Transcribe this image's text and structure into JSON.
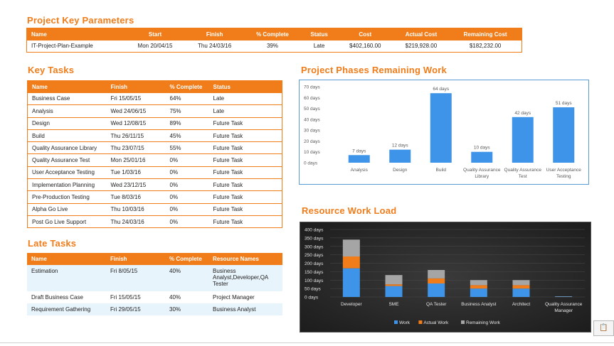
{
  "key_params": {
    "title": "Project Key Parameters",
    "headers": [
      "Name",
      "Start",
      "Finish",
      "% Complete",
      "Status",
      "Cost",
      "Actual Cost",
      "Remaining Cost"
    ],
    "row": [
      "IT-Project-Plan-Example",
      "Mon 20/04/15",
      "Thu 24/03/16",
      "39%",
      "Late",
      "$402,160.00",
      "$219,928.00",
      "$182,232.00"
    ]
  },
  "key_tasks": {
    "title": "Key Tasks",
    "headers": [
      "Name",
      "Finish",
      "% Complete",
      "Status"
    ],
    "rows": [
      [
        "Business Case",
        "Fri 15/05/15",
        "64%",
        "Late"
      ],
      [
        "Analysis",
        "Wed 24/06/15",
        "75%",
        "Late"
      ],
      [
        "Design",
        "Wed 12/08/15",
        "89%",
        "Future Task"
      ],
      [
        "Build",
        "Thu 26/11/15",
        "45%",
        "Future Task"
      ],
      [
        "Quality Assurance Library",
        "Thu 23/07/15",
        "55%",
        "Future Task"
      ],
      [
        "Quality Assurance Test",
        "Mon 25/01/16",
        "0%",
        "Future Task"
      ],
      [
        "User Acceptance Testing",
        "Tue 1/03/16",
        "0%",
        "Future Task"
      ],
      [
        "Implementation Planning",
        "Wed 23/12/15",
        "0%",
        "Future Task"
      ],
      [
        "Pre-Production Testing",
        "Tue 8/03/16",
        "0%",
        "Future Task"
      ],
      [
        "Alpha Go Live",
        "Thu 10/03/16",
        "0%",
        "Future Task"
      ],
      [
        "Post Go Live Support",
        "Thu 24/03/16",
        "0%",
        "Future Task"
      ]
    ]
  },
  "late_tasks": {
    "title": "Late Tasks",
    "headers": [
      "Name",
      "Finish",
      "% Complete",
      "Resource Names"
    ],
    "rows": [
      [
        "Estimation",
        "Fri 8/05/15",
        "40%",
        "Business Analyst,Developer,QA Tester"
      ],
      [
        "Draft Business Case",
        "Fri 15/05/15",
        "40%",
        "Project Manager"
      ],
      [
        "Requirement Gathering",
        "Fri 29/05/15",
        "30%",
        "Business Analyst"
      ]
    ]
  },
  "phases_chart": {
    "title": "Project Phases Remaining Work"
  },
  "resource_chart": {
    "title": "Resource Work Load"
  },
  "paste_icon_label": "(Ctrl)",
  "colors": {
    "accent": "#f07c1a",
    "bar_blue": "#3e94e8",
    "work": "#3e94e8",
    "actual_work": "#f07c1a",
    "remaining_work": "#a5a5a5"
  },
  "chart_data": [
    {
      "type": "bar",
      "title": "Project Phases Remaining Work",
      "categories": [
        "Analysis",
        "Design",
        "Build",
        "Quality Assurance Library",
        "Quality Assurance Test",
        "User Acceptance Testing"
      ],
      "values": [
        7,
        12,
        64,
        10,
        42,
        51
      ],
      "data_labels": [
        "7 days",
        "12 days",
        "64 days",
        "10 days",
        "42 days",
        "51 days"
      ],
      "ytick_labels": [
        "0 days",
        "10 days",
        "20 days",
        "30 days",
        "40 days",
        "50 days",
        "60 days",
        "70 days"
      ],
      "ylim": [
        0,
        70
      ],
      "grid": false
    },
    {
      "type": "bar",
      "stacked": true,
      "title": "Resource Work Load",
      "categories": [
        "Developer",
        "SME",
        "QA Tester",
        "Business Analyst",
        "Architect",
        "Quality Assurance Manager"
      ],
      "series": [
        {
          "name": "Work",
          "values": [
            170,
            65,
            80,
            50,
            50,
            2
          ]
        },
        {
          "name": "Actual Work",
          "values": [
            70,
            10,
            30,
            20,
            20,
            0
          ]
        },
        {
          "name": "Remaining Work",
          "values": [
            100,
            55,
            50,
            30,
            30,
            2
          ]
        }
      ],
      "ytick_labels": [
        "0 days",
        "50 days",
        "100 days",
        "150 days",
        "200 days",
        "250 days",
        "300 days",
        "350 days",
        "400 days"
      ],
      "ylim": [
        0,
        400
      ],
      "legend": "bottom",
      "grid": true
    }
  ]
}
